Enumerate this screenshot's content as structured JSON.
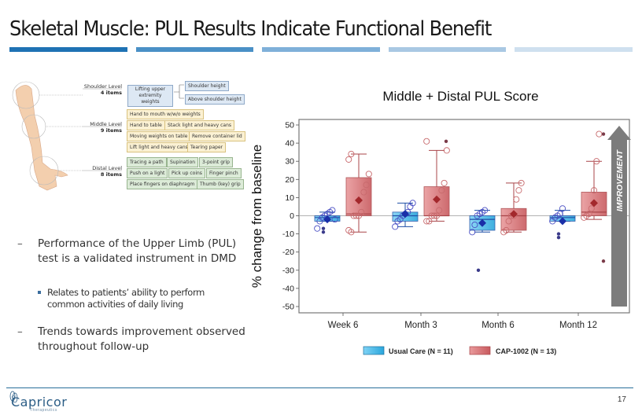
{
  "slide": {
    "title": "Skeletal Muscle: PUL Results Indicate Functional Benefit",
    "title_bar_colors": [
      "#1f72b4",
      "#4a90c6",
      "#7fb0d9",
      "#a9c8e3",
      "#cfe0ef"
    ],
    "page_number": "17"
  },
  "diagram": {
    "levels": [
      {
        "name": "Shoulder Level",
        "count": "4 items"
      },
      {
        "name": "Middle Level",
        "count": "9 items"
      },
      {
        "name": "Distal Level",
        "count": "8 items"
      }
    ],
    "shoulder_items": [
      "Lifting upper extremity weights",
      "Shoulder height",
      "Above shoulder height"
    ],
    "middle_items": [
      "Hand to mouth w/w/o weights",
      "Hand to table",
      "Stack light and heavy cans",
      "Moving weights on table",
      "Remove container lid",
      "Lift light and heavy cans",
      "Tearing paper"
    ],
    "distal_items": [
      "Tracing a path",
      "Supination",
      "3-point grip",
      "Push on a light",
      "Pick up coins",
      "Finger pinch",
      "Place fingers on diaphragm",
      "Thumb (key) grip"
    ]
  },
  "bullets": [
    {
      "text": "Performance of the Upper Limb (PUL) test is a validated instrument in DMD",
      "marker": "–"
    },
    {
      "text": "Relates to patients’ ability to perform common activities of daily living",
      "marker": "square"
    },
    {
      "text": "Trends towards improvement observed throughout follow-up",
      "marker": "–"
    }
  ],
  "footer": {
    "brand": "Capricor",
    "brand_sub": "Therapeutics"
  },
  "chart_data": {
    "type": "box",
    "title": "Middle + Distal PUL Score",
    "xlabel": "",
    "ylabel": "% change from baseline",
    "ylim": [
      -50,
      50
    ],
    "yticks": [
      50,
      40,
      30,
      20,
      10,
      0,
      -10,
      -20,
      -30,
      -40,
      -50
    ],
    "categories": [
      "Week 6",
      "Month 3",
      "Month 6",
      "Month 12"
    ],
    "annotation": "IMPROVEMENT",
    "legend_position": "bottom",
    "series": [
      {
        "name": "Usual Care (N = 11)",
        "color": "#3fb6e8",
        "edge": "#1f4fa6",
        "boxes": [
          {
            "q1": -3,
            "median": -1,
            "q3": 0,
            "whisker_low": -3,
            "whisker_high": 2,
            "mean": -2,
            "points": [
              -7,
              -3,
              -1,
              0,
              1,
              2,
              3,
              -2
            ],
            "outliers": [
              -7,
              -9
            ]
          },
          {
            "q1": -3,
            "median": 0,
            "q3": 2,
            "whisker_low": -6,
            "whisker_high": 7,
            "mean": 1,
            "points": [
              -6,
              -3,
              -2,
              0,
              1,
              2,
              5,
              7
            ],
            "outliers": []
          },
          {
            "q1": -8,
            "median": -2,
            "q3": 0,
            "whisker_low": -9,
            "whisker_high": 3,
            "mean": -4,
            "points": [
              -9,
              -5,
              0,
              1,
              2,
              3
            ],
            "outliers": [
              -30
            ]
          },
          {
            "q1": -3,
            "median": -1,
            "q3": 0,
            "whisker_low": -3,
            "whisker_high": 3,
            "mean": -3,
            "points": [
              -3,
              -1,
              0,
              1,
              4
            ],
            "outliers": [
              -10,
              -12
            ]
          }
        ]
      },
      {
        "name": "CAP-1002 (N = 13)",
        "color": "#d9777a",
        "edge": "#a84448",
        "boxes": [
          {
            "q1": 0,
            "median": 1,
            "q3": 21,
            "whisker_low": -9,
            "whisker_high": 34,
            "mean": 8.5,
            "points": [
              -8,
              -9,
              0,
              0,
              0,
              2,
              13,
              17,
              23,
              31,
              34
            ],
            "outliers": []
          },
          {
            "q1": 0,
            "median": 0,
            "q3": 16,
            "whisker_low": -3,
            "whisker_high": 36,
            "mean": 9,
            "points": [
              -3,
              -3,
              0,
              0,
              0,
              3,
              14,
              18,
              36,
              41
            ],
            "outliers": [
              41
            ]
          },
          {
            "q1": -8,
            "median": 0,
            "q3": 4,
            "whisker_low": -9,
            "whisker_high": 18,
            "mean": 1,
            "points": [
              -9,
              -8,
              -3,
              0,
              0,
              9,
              14,
              18
            ],
            "outliers": []
          },
          {
            "q1": 0,
            "median": 2,
            "q3": 13,
            "whisker_low": -2,
            "whisker_high": 30,
            "mean": 7,
            "points": [
              -1,
              0,
              1,
              4,
              14,
              30,
              45
            ],
            "outliers": [
              -25,
              45
            ]
          }
        ]
      }
    ]
  }
}
